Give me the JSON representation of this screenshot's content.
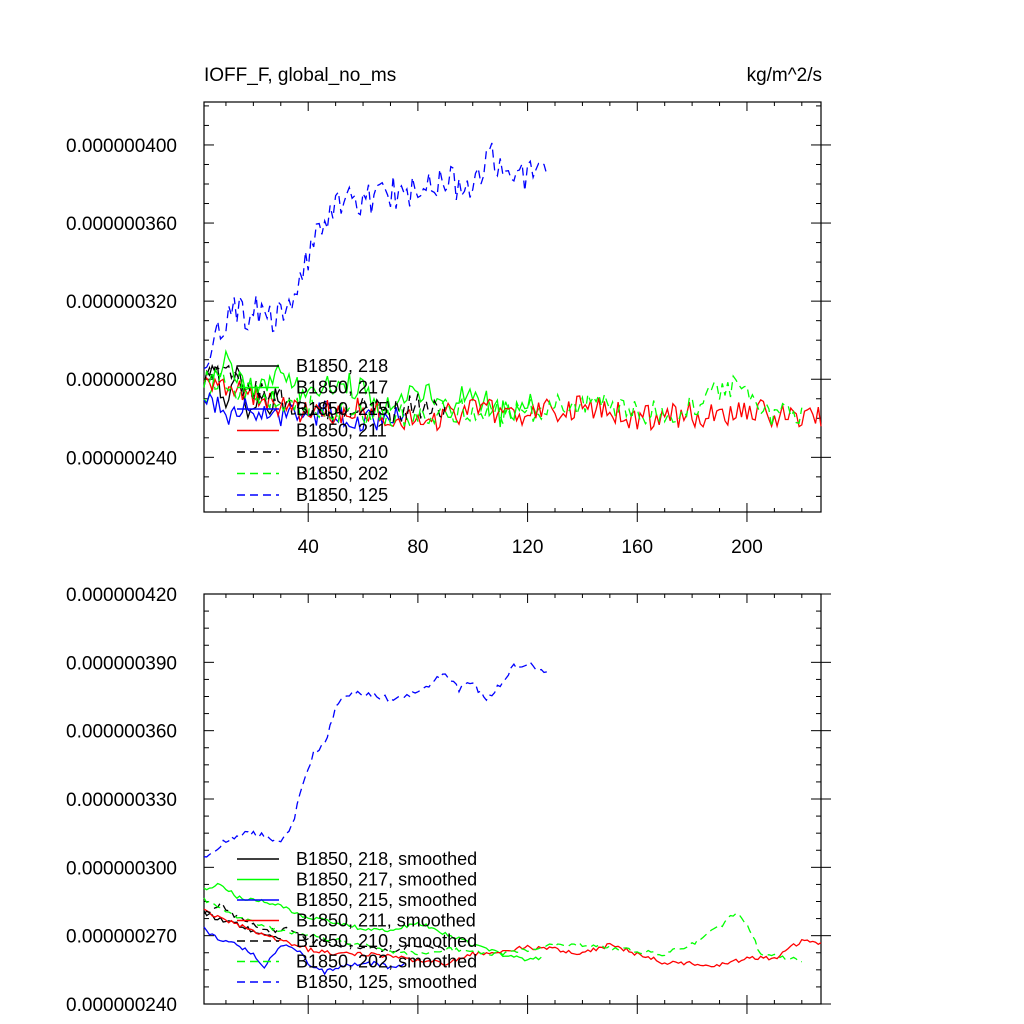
{
  "colors": {
    "black": "#000000",
    "green": "#00ff00",
    "red": "#ff0000",
    "blue": "#0000ff"
  },
  "chart_data": [
    {
      "type": "line",
      "title_left": "IOFF_F, global_no_ms",
      "title_right": "kg/m^2/s",
      "xlabel": "",
      "ylabel": "",
      "xlim": [
        2,
        227
      ],
      "ylim": [
        2.12e-07,
        4.22e-07
      ],
      "xticks": [
        40,
        80,
        120,
        160,
        200
      ],
      "xtick_labels": [
        "40",
        "80",
        "120",
        "160",
        "200"
      ],
      "yticks": [
        2.4e-07,
        2.8e-07,
        3.2e-07,
        3.6e-07,
        4e-07
      ],
      "ytick_labels": [
        "0.000000240",
        "0.000000280",
        "0.000000320",
        "0.000000360",
        "0.000000400"
      ],
      "legend_position": "lower-left",
      "series": [
        {
          "name": "B1850, 218",
          "color": "#000000",
          "dash": "solid",
          "x_end": 30,
          "points": [
            [
              2,
              2.78e-07
            ],
            [
              6,
              2.84e-07
            ],
            [
              10,
              2.7e-07
            ],
            [
              14,
              2.82e-07
            ],
            [
              18,
              2.65e-07
            ],
            [
              22,
              2.74e-07
            ],
            [
              26,
              2.68e-07
            ],
            [
              30,
              2.72e-07
            ]
          ]
        },
        {
          "name": "B1850, 217",
          "color": "#00ff00",
          "dash": "solid",
          "x_end": 125,
          "points": [
            [
              2,
              2.72e-07
            ],
            [
              10,
              2.9e-07
            ],
            [
              20,
              2.75e-07
            ],
            [
              30,
              2.82e-07
            ],
            [
              40,
              2.71e-07
            ],
            [
              50,
              2.8e-07
            ],
            [
              60,
              2.75e-07
            ],
            [
              70,
              2.68e-07
            ],
            [
              80,
              2.76e-07
            ],
            [
              90,
              2.65e-07
            ],
            [
              100,
              2.73e-07
            ],
            [
              110,
              2.62e-07
            ],
            [
              120,
              2.68e-07
            ],
            [
              125,
              2.65e-07
            ]
          ]
        },
        {
          "name": "B1850, 215",
          "color": "#0000ff",
          "dash": "solid",
          "x_end": 75,
          "points": [
            [
              2,
              2.72e-07
            ],
            [
              10,
              2.62e-07
            ],
            [
              20,
              2.66e-07
            ],
            [
              30,
              2.62e-07
            ],
            [
              40,
              2.6e-07
            ],
            [
              50,
              2.64e-07
            ],
            [
              60,
              2.58e-07
            ],
            [
              70,
              2.62e-07
            ],
            [
              75,
              2.6e-07
            ]
          ]
        },
        {
          "name": "B1850, 211",
          "color": "#ff0000",
          "dash": "solid",
          "x_end": 227,
          "points": [
            [
              2,
              2.82e-07
            ],
            [
              20,
              2.7e-07
            ],
            [
              40,
              2.62e-07
            ],
            [
              60,
              2.64e-07
            ],
            [
              80,
              2.58e-07
            ],
            [
              100,
              2.64e-07
            ],
            [
              120,
              2.62e-07
            ],
            [
              140,
              2.66e-07
            ],
            [
              160,
              2.6e-07
            ],
            [
              180,
              2.62e-07
            ],
            [
              200,
              2.63e-07
            ],
            [
              220,
              2.62e-07
            ],
            [
              227,
              2.61e-07
            ]
          ]
        },
        {
          "name": "B1850, 210",
          "color": "#000000",
          "dash": "dashed",
          "x_end": 90,
          "points": [
            [
              2,
              2.8e-07
            ],
            [
              10,
              2.82e-07
            ],
            [
              20,
              2.73e-07
            ],
            [
              30,
              2.7e-07
            ],
            [
              40,
              2.66e-07
            ],
            [
              50,
              2.64e-07
            ],
            [
              60,
              2.65e-07
            ],
            [
              70,
              2.63e-07
            ],
            [
              80,
              2.66e-07
            ],
            [
              90,
              2.62e-07
            ]
          ]
        },
        {
          "name": "B1850, 202",
          "color": "#00ff00",
          "dash": "dashed",
          "x_end": 220,
          "points": [
            [
              2,
              2.8e-07
            ],
            [
              20,
              2.72e-07
            ],
            [
              40,
              2.66e-07
            ],
            [
              60,
              2.62e-07
            ],
            [
              80,
              2.62e-07
            ],
            [
              100,
              2.64e-07
            ],
            [
              120,
              2.63e-07
            ],
            [
              140,
              2.68e-07
            ],
            [
              160,
              2.62e-07
            ],
            [
              180,
              2.65e-07
            ],
            [
              195,
              2.78e-07
            ],
            [
              205,
              2.62e-07
            ],
            [
              220,
              2.62e-07
            ]
          ]
        },
        {
          "name": "B1850, 125",
          "color": "#0000ff",
          "dash": "dashed",
          "x_end": 127,
          "points": [
            [
              2,
              2.92e-07
            ],
            [
              10,
              3.12e-07
            ],
            [
              20,
              3.15e-07
            ],
            [
              30,
              3.12e-07
            ],
            [
              35,
              3.25e-07
            ],
            [
              40,
              3.45e-07
            ],
            [
              45,
              3.55e-07
            ],
            [
              50,
              3.72e-07
            ],
            [
              60,
              3.72e-07
            ],
            [
              70,
              3.76e-07
            ],
            [
              80,
              3.74e-07
            ],
            [
              90,
              3.83e-07
            ],
            [
              100,
              3.78e-07
            ],
            [
              107,
              3.95e-07
            ],
            [
              115,
              3.82e-07
            ],
            [
              125,
              3.9e-07
            ],
            [
              127,
              3.86e-07
            ]
          ]
        }
      ]
    },
    {
      "type": "line",
      "title_left": "",
      "title_right": "",
      "xlabel": "",
      "ylabel": "",
      "xlim": [
        2,
        227
      ],
      "ylim": [
        2.4e-07,
        4.2e-07
      ],
      "xticks": [
        40,
        80,
        120,
        160,
        200
      ],
      "xtick_labels": [],
      "yticks": [
        2.4e-07,
        2.7e-07,
        3e-07,
        3.3e-07,
        3.6e-07,
        3.9e-07,
        4.2e-07
      ],
      "ytick_labels": [
        "0.000000240",
        "0.000000270",
        "0.000000300",
        "0.000000330",
        "0.000000360",
        "0.000000390",
        "0.000000420"
      ],
      "legend_position": "lower-left",
      "series": [
        {
          "name": "B1850, 218, smoothed",
          "color": "#000000",
          "dash": "solid",
          "x_end": 30,
          "points": [
            [
              2,
              2.8e-07
            ],
            [
              8,
              2.77e-07
            ],
            [
              14,
              2.75e-07
            ],
            [
              20,
              2.72e-07
            ],
            [
              26,
              2.7e-07
            ],
            [
              30,
              2.69e-07
            ]
          ]
        },
        {
          "name": "B1850, 217, smoothed",
          "color": "#00ff00",
          "dash": "solid",
          "x_end": 125,
          "points": [
            [
              2,
              2.9e-07
            ],
            [
              8,
              2.93e-07
            ],
            [
              14,
              2.87e-07
            ],
            [
              20,
              2.86e-07
            ],
            [
              30,
              2.83e-07
            ],
            [
              40,
              2.78e-07
            ],
            [
              50,
              2.76e-07
            ],
            [
              60,
              2.73e-07
            ],
            [
              70,
              2.72e-07
            ],
            [
              80,
              2.76e-07
            ],
            [
              90,
              2.71e-07
            ],
            [
              100,
              2.66e-07
            ],
            [
              110,
              2.62e-07
            ],
            [
              120,
              2.59e-07
            ],
            [
              125,
              2.6e-07
            ]
          ]
        },
        {
          "name": "B1850, 215, smoothed",
          "color": "#0000ff",
          "dash": "solid",
          "x_end": 75,
          "points": [
            [
              2,
              2.73e-07
            ],
            [
              8,
              2.68e-07
            ],
            [
              14,
              2.66e-07
            ],
            [
              20,
              2.62e-07
            ],
            [
              24,
              2.56e-07
            ],
            [
              30,
              2.66e-07
            ],
            [
              36,
              2.64e-07
            ],
            [
              40,
              2.58e-07
            ],
            [
              46,
              2.54e-07
            ],
            [
              52,
              2.57e-07
            ],
            [
              58,
              2.57e-07
            ],
            [
              64,
              2.58e-07
            ],
            [
              70,
              2.56e-07
            ],
            [
              75,
              2.58e-07
            ]
          ]
        },
        {
          "name": "B1850, 211, smoothed",
          "color": "#ff0000",
          "dash": "solid",
          "x_end": 227,
          "points": [
            [
              2,
              2.81e-07
            ],
            [
              10,
              2.77e-07
            ],
            [
              20,
              2.72e-07
            ],
            [
              30,
              2.68e-07
            ],
            [
              40,
              2.64e-07
            ],
            [
              50,
              2.62e-07
            ],
            [
              60,
              2.62e-07
            ],
            [
              70,
              2.61e-07
            ],
            [
              80,
              2.59e-07
            ],
            [
              90,
              2.58e-07
            ],
            [
              100,
              2.62e-07
            ],
            [
              110,
              2.63e-07
            ],
            [
              120,
              2.65e-07
            ],
            [
              130,
              2.64e-07
            ],
            [
              140,
              2.62e-07
            ],
            [
              150,
              2.66e-07
            ],
            [
              160,
              2.62e-07
            ],
            [
              170,
              2.58e-07
            ],
            [
              180,
              2.58e-07
            ],
            [
              190,
              2.57e-07
            ],
            [
              200,
              2.6e-07
            ],
            [
              210,
              2.6e-07
            ],
            [
              220,
              2.68e-07
            ],
            [
              227,
              2.66e-07
            ]
          ]
        },
        {
          "name": "B1850, 210, smoothed",
          "color": "#000000",
          "dash": "dashed",
          "x_end": 90,
          "points": [
            [
              2,
              2.79e-07
            ],
            [
              8,
              2.84e-07
            ],
            [
              14,
              2.78e-07
            ],
            [
              20,
              2.75e-07
            ],
            [
              26,
              2.72e-07
            ],
            [
              32,
              2.73e-07
            ],
            [
              40,
              2.68e-07
            ],
            [
              50,
              2.66e-07
            ],
            [
              60,
              2.65e-07
            ],
            [
              70,
              2.63e-07
            ],
            [
              80,
              2.66e-07
            ],
            [
              90,
              2.64e-07
            ]
          ]
        },
        {
          "name": "B1850, 202, smoothed",
          "color": "#00ff00",
          "dash": "dashed",
          "x_end": 220,
          "points": [
            [
              2,
              2.86e-07
            ],
            [
              10,
              2.8e-07
            ],
            [
              20,
              2.76e-07
            ],
            [
              30,
              2.72e-07
            ],
            [
              40,
              2.7e-07
            ],
            [
              50,
              2.68e-07
            ],
            [
              60,
              2.66e-07
            ],
            [
              70,
              2.63e-07
            ],
            [
              80,
              2.62e-07
            ],
            [
              90,
              2.64e-07
            ],
            [
              100,
              2.63e-07
            ],
            [
              110,
              2.62e-07
            ],
            [
              120,
              2.64e-07
            ],
            [
              130,
              2.66e-07
            ],
            [
              140,
              2.66e-07
            ],
            [
              150,
              2.65e-07
            ],
            [
              160,
              2.63e-07
            ],
            [
              170,
              2.62e-07
            ],
            [
              180,
              2.66e-07
            ],
            [
              190,
              2.74e-07
            ],
            [
              196,
              2.8e-07
            ],
            [
              200,
              2.75e-07
            ],
            [
              205,
              2.62e-07
            ],
            [
              210,
              2.61e-07
            ],
            [
              220,
              2.59e-07
            ]
          ]
        },
        {
          "name": "B1850, 125, smoothed",
          "color": "#0000ff",
          "dash": "dashed",
          "x_end": 127,
          "points": [
            [
              2,
              3.04e-07
            ],
            [
              8,
              3.1e-07
            ],
            [
              14,
              3.14e-07
            ],
            [
              20,
              3.15e-07
            ],
            [
              26,
              3.13e-07
            ],
            [
              30,
              3.1e-07
            ],
            [
              34,
              3.18e-07
            ],
            [
              38,
              3.36e-07
            ],
            [
              42,
              3.5e-07
            ],
            [
              46,
              3.54e-07
            ],
            [
              50,
              3.7e-07
            ],
            [
              54,
              3.76e-07
            ],
            [
              60,
              3.76e-07
            ],
            [
              70,
              3.74e-07
            ],
            [
              80,
              3.77e-07
            ],
            [
              90,
              3.85e-07
            ],
            [
              95,
              3.78e-07
            ],
            [
              100,
              3.81e-07
            ],
            [
              105,
              3.73e-07
            ],
            [
              110,
              3.8e-07
            ],
            [
              115,
              3.88e-07
            ],
            [
              120,
              3.9e-07
            ],
            [
              125,
              3.86e-07
            ],
            [
              127,
              3.85e-07
            ]
          ]
        }
      ]
    }
  ]
}
